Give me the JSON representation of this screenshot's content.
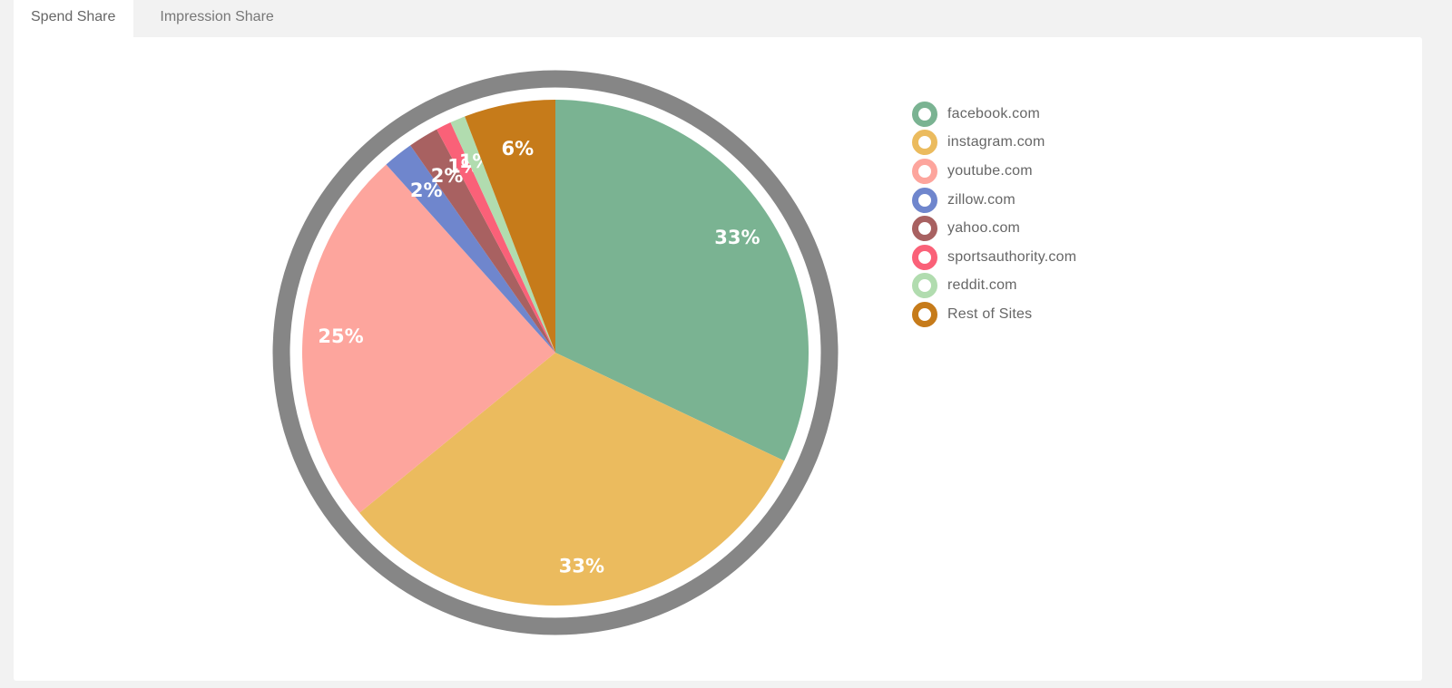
{
  "tabs": [
    {
      "label": "Spend Share",
      "active": true
    },
    {
      "label": "Impression Share",
      "active": false
    }
  ],
  "chart_data": {
    "type": "pie",
    "title": "",
    "categories": [
      "facebook.com",
      "instagram.com",
      "youtube.com",
      "zillow.com",
      "yahoo.com",
      "sportsauthority.com",
      "reddit.com",
      "Rest of Sites"
    ],
    "values": [
      33,
      33,
      25,
      2,
      2,
      1,
      1,
      6
    ],
    "value_labels": [
      "33%",
      "33%",
      "25%",
      "2%",
      "2%",
      "1%",
      "1%",
      "6%"
    ],
    "colors": [
      "#7ab392",
      "#ebbb5e",
      "#fda59d",
      "#6f86cd",
      "#a86161",
      "#fa6178",
      "#b1dcaf",
      "#c67b1a"
    ],
    "ring_color": "#868686",
    "start": "top",
    "direction": "clockwise",
    "legend_position": "right"
  }
}
